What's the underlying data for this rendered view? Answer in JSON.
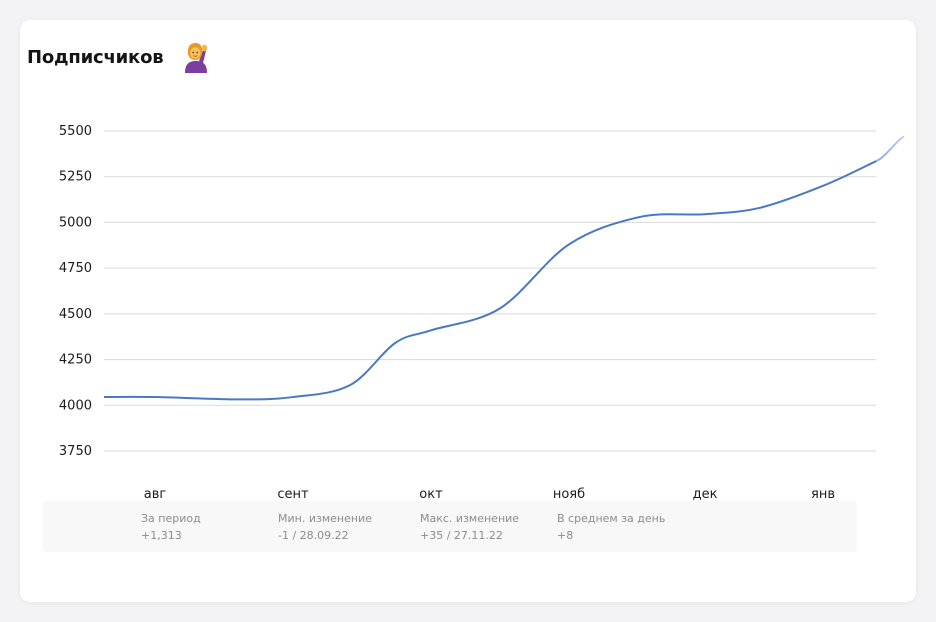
{
  "header": {
    "title": "Подписчиков",
    "icon": "person-raising-hand-icon"
  },
  "chart_data": {
    "type": "line",
    "title": "Подписчиков",
    "xlabel": "",
    "ylabel": "",
    "ylim": [
      3750,
      5500
    ],
    "yticks": [
      5500,
      5250,
      5000,
      4750,
      4500,
      4250,
      4000,
      3750
    ],
    "categories": [
      "авг",
      "сент",
      "окт",
      "нояб",
      "дек",
      "янв"
    ],
    "x": [
      "авг",
      "сент",
      "окт",
      "нояб",
      "дек",
      "янв"
    ],
    "values": [
      4045,
      4040,
      4400,
      4880,
      5045,
      5200
    ],
    "grid": true,
    "legend": "none",
    "colors": {
      "line": "#4a78c4",
      "grid": "#d9d9d9",
      "text": "#1c1c1c"
    }
  },
  "stats": [
    {
      "label": "За период",
      "value": "+1,313"
    },
    {
      "label": "Мин. изменение",
      "value": "-1 / 28.09.22"
    },
    {
      "label": "Макс. изменение",
      "value": "+35 / 27.11.22"
    },
    {
      "label": "В среднем за день",
      "value": "+8"
    }
  ]
}
